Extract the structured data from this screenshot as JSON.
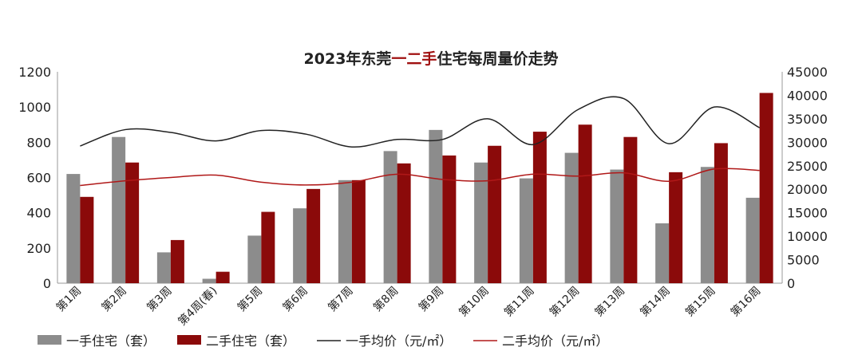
{
  "chart_data": {
    "type": "bar",
    "title_parts": [
      "2023年东莞",
      "一二手",
      "住宅每周量价走势"
    ],
    "categories": [
      "第1周",
      "第2周",
      "第3周",
      "第4周(春)",
      "第5周",
      "第6周",
      "第7周",
      "第8周",
      "第9周",
      "第10周",
      "第11周",
      "第12周",
      "第13周",
      "第14周",
      "第15周",
      "第16周"
    ],
    "ylim_left": [
      0,
      1200
    ],
    "yticks_left": [
      0,
      200,
      400,
      600,
      800,
      1000,
      1200
    ],
    "ylim_right": [
      0,
      45000
    ],
    "yticks_right": [
      0,
      5000,
      10000,
      15000,
      20000,
      25000,
      30000,
      35000,
      40000,
      45000
    ],
    "grid": false,
    "legend_position": "bottom",
    "series": [
      {
        "name": "一手住宅（套）",
        "kind": "bar",
        "axis": "left",
        "color": "#8c8c8c",
        "values": [
          620,
          830,
          175,
          25,
          270,
          425,
          585,
          750,
          870,
          685,
          595,
          740,
          645,
          340,
          660,
          485
        ]
      },
      {
        "name": "二手住宅（套）",
        "kind": "bar",
        "axis": "left",
        "color": "#8b0a0a",
        "values": [
          490,
          685,
          245,
          65,
          405,
          535,
          585,
          680,
          725,
          780,
          860,
          900,
          830,
          630,
          795,
          1080
        ]
      },
      {
        "name": "一手均价（元/㎡）",
        "kind": "line",
        "axis": "right",
        "color": "#222222",
        "values": [
          29200,
          32700,
          32100,
          30300,
          32500,
          31700,
          29000,
          30600,
          30600,
          35000,
          29500,
          37000,
          39300,
          29700,
          37500,
          33100
        ]
      },
      {
        "name": "二手均价（元/㎡）",
        "kind": "line",
        "axis": "right",
        "color": "#b01818",
        "values": [
          20800,
          21800,
          22500,
          23000,
          21500,
          20900,
          21500,
          23200,
          22100,
          21800,
          23200,
          22800,
          23500,
          21700,
          24300,
          24000
        ]
      }
    ]
  }
}
